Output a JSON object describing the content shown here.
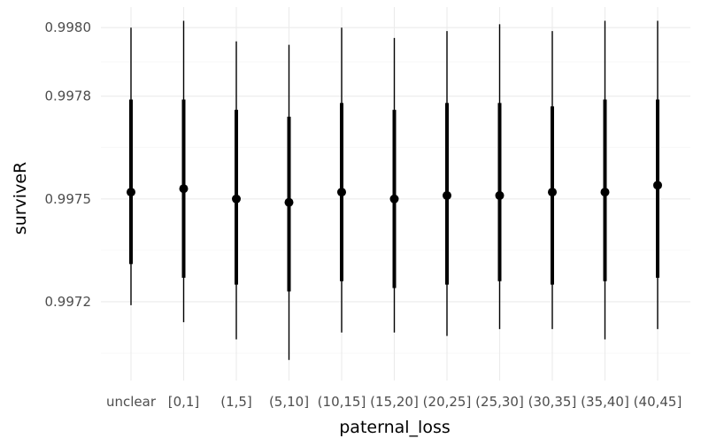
{
  "chart_data": {
    "type": "pointrange",
    "xlabel": "paternal_loss",
    "ylabel": "surviveR",
    "categories": [
      "unclear",
      "[0,1]",
      "(1,5]",
      "(5,10]",
      "(10,15]",
      "(15,20]",
      "(20,25]",
      "(25,30]",
      "(30,35]",
      "(35,40]",
      "(40,45]"
    ],
    "y_ticks": [
      0.9972,
      0.9975,
      0.9978,
      0.998
    ],
    "y_tick_labels": [
      "0.9972",
      "0.9975",
      "0.9978",
      "0.9980"
    ],
    "ylim": [
      0.99697,
      0.99806
    ],
    "series": [
      {
        "point": [
          0.99752,
          0.99753,
          0.9975,
          0.99749,
          0.99752,
          0.9975,
          0.99751,
          0.99751,
          0.99752,
          0.99752,
          0.99754
        ],
        "inner_low": [
          0.99731,
          0.99727,
          0.99725,
          0.99723,
          0.99726,
          0.99724,
          0.99725,
          0.99726,
          0.99725,
          0.99726,
          0.99727
        ],
        "inner_high": [
          0.99779,
          0.99779,
          0.99776,
          0.99774,
          0.99778,
          0.99776,
          0.99778,
          0.99778,
          0.99777,
          0.99779,
          0.99779
        ],
        "outer_low": [
          0.99719,
          0.99714,
          0.99709,
          0.99703,
          0.99711,
          0.99711,
          0.9971,
          0.99712,
          0.99712,
          0.99709,
          0.99712
        ],
        "outer_high": [
          0.998,
          0.99802,
          0.99796,
          0.99795,
          0.998,
          0.99797,
          0.99799,
          0.99801,
          0.99799,
          0.99802,
          0.99802
        ]
      }
    ],
    "grid": true,
    "legend": "none",
    "colors": {
      "marks": "#000000",
      "grid": "#ebebeb",
      "tick_text": "#4d4d4d"
    }
  }
}
